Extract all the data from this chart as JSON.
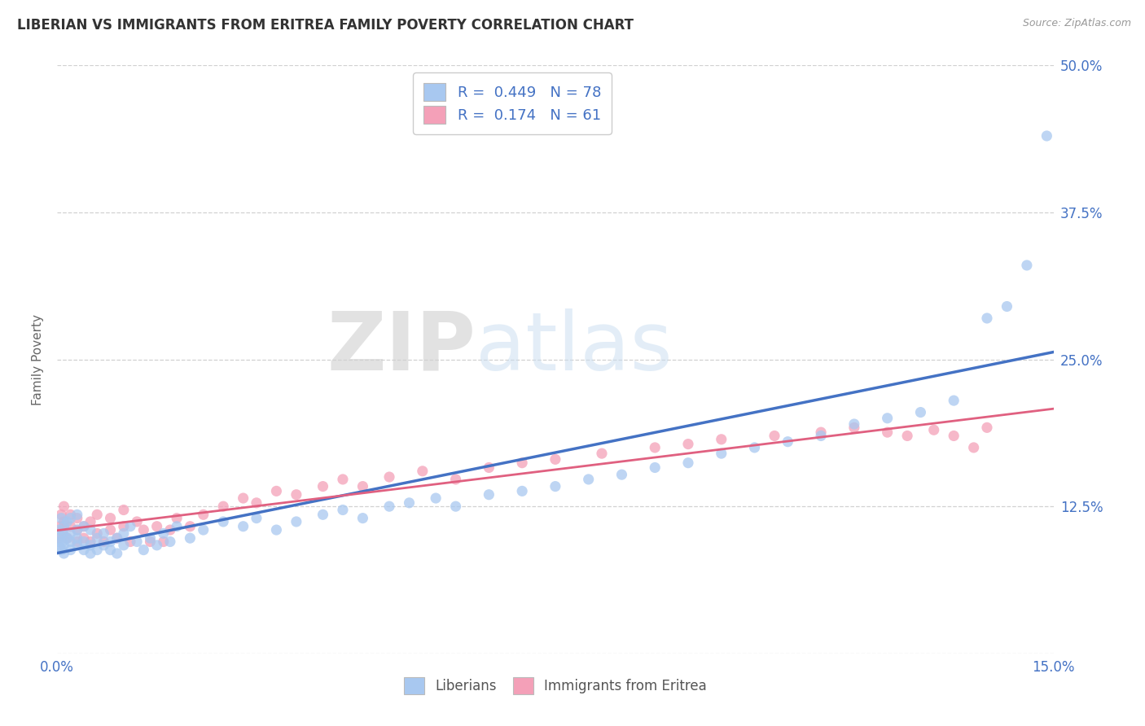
{
  "title": "LIBERIAN VS IMMIGRANTS FROM ERITREA FAMILY POVERTY CORRELATION CHART",
  "source_text": "Source: ZipAtlas.com",
  "ylabel": "Family Poverty",
  "xlim": [
    0.0,
    0.15
  ],
  "ylim": [
    0.0,
    0.5
  ],
  "legend_liberian_R": "0.449",
  "legend_liberian_N": "78",
  "legend_eritrea_R": "0.174",
  "legend_eritrea_N": "61",
  "liberian_color": "#a8c8f0",
  "eritrea_color": "#f4a0b8",
  "liberian_line_color": "#4472c4",
  "eritrea_line_color": "#e06080",
  "watermark_zip": "ZIP",
  "watermark_atlas": "atlas",
  "background_color": "#ffffff",
  "grid_color": "#cccccc",
  "tick_label_color": "#4472c4",
  "title_color": "#333333",
  "ylabel_color": "#666666",
  "liberian_scatter_x": [
    0.0002,
    0.0003,
    0.0004,
    0.0005,
    0.0006,
    0.0007,
    0.0008,
    0.0009,
    0.001,
    0.001,
    0.001,
    0.0015,
    0.0015,
    0.002,
    0.002,
    0.002,
    0.002,
    0.003,
    0.003,
    0.003,
    0.003,
    0.004,
    0.004,
    0.004,
    0.005,
    0.005,
    0.005,
    0.006,
    0.006,
    0.007,
    0.007,
    0.008,
    0.008,
    0.009,
    0.009,
    0.01,
    0.01,
    0.011,
    0.012,
    0.013,
    0.014,
    0.015,
    0.016,
    0.017,
    0.018,
    0.02,
    0.022,
    0.025,
    0.028,
    0.03,
    0.033,
    0.036,
    0.04,
    0.043,
    0.046,
    0.05,
    0.053,
    0.057,
    0.06,
    0.065,
    0.07,
    0.075,
    0.08,
    0.085,
    0.09,
    0.095,
    0.1,
    0.105,
    0.11,
    0.115,
    0.12,
    0.125,
    0.13,
    0.135,
    0.14,
    0.143,
    0.146,
    0.149
  ],
  "liberian_scatter_y": [
    0.095,
    0.105,
    0.09,
    0.1,
    0.115,
    0.088,
    0.095,
    0.102,
    0.085,
    0.092,
    0.108,
    0.098,
    0.112,
    0.088,
    0.095,
    0.102,
    0.115,
    0.092,
    0.098,
    0.105,
    0.118,
    0.088,
    0.095,
    0.108,
    0.085,
    0.092,
    0.105,
    0.088,
    0.098,
    0.092,
    0.102,
    0.088,
    0.095,
    0.085,
    0.098,
    0.092,
    0.102,
    0.108,
    0.095,
    0.088,
    0.098,
    0.092,
    0.102,
    0.095,
    0.108,
    0.098,
    0.105,
    0.112,
    0.108,
    0.115,
    0.105,
    0.112,
    0.118,
    0.122,
    0.115,
    0.125,
    0.128,
    0.132,
    0.125,
    0.135,
    0.138,
    0.142,
    0.148,
    0.152,
    0.158,
    0.162,
    0.17,
    0.175,
    0.18,
    0.185,
    0.195,
    0.2,
    0.205,
    0.215,
    0.285,
    0.295,
    0.33,
    0.44
  ],
  "eritrea_scatter_x": [
    0.0002,
    0.0004,
    0.0006,
    0.0008,
    0.001,
    0.001,
    0.0015,
    0.002,
    0.002,
    0.003,
    0.003,
    0.003,
    0.004,
    0.004,
    0.005,
    0.005,
    0.006,
    0.006,
    0.007,
    0.008,
    0.008,
    0.009,
    0.01,
    0.01,
    0.011,
    0.012,
    0.013,
    0.014,
    0.015,
    0.016,
    0.017,
    0.018,
    0.02,
    0.022,
    0.025,
    0.028,
    0.03,
    0.033,
    0.036,
    0.04,
    0.043,
    0.046,
    0.05,
    0.055,
    0.06,
    0.065,
    0.07,
    0.075,
    0.082,
    0.09,
    0.095,
    0.1,
    0.108,
    0.115,
    0.12,
    0.125,
    0.128,
    0.132,
    0.135,
    0.138,
    0.14
  ],
  "eritrea_scatter_y": [
    0.098,
    0.108,
    0.118,
    0.105,
    0.112,
    0.125,
    0.098,
    0.108,
    0.118,
    0.095,
    0.105,
    0.115,
    0.098,
    0.108,
    0.095,
    0.112,
    0.102,
    0.118,
    0.095,
    0.105,
    0.115,
    0.098,
    0.108,
    0.122,
    0.095,
    0.112,
    0.105,
    0.095,
    0.108,
    0.095,
    0.105,
    0.115,
    0.108,
    0.118,
    0.125,
    0.132,
    0.128,
    0.138,
    0.135,
    0.142,
    0.148,
    0.142,
    0.15,
    0.155,
    0.148,
    0.158,
    0.162,
    0.165,
    0.17,
    0.175,
    0.178,
    0.182,
    0.185,
    0.188,
    0.192,
    0.188,
    0.185,
    0.19,
    0.185,
    0.175,
    0.192
  ]
}
